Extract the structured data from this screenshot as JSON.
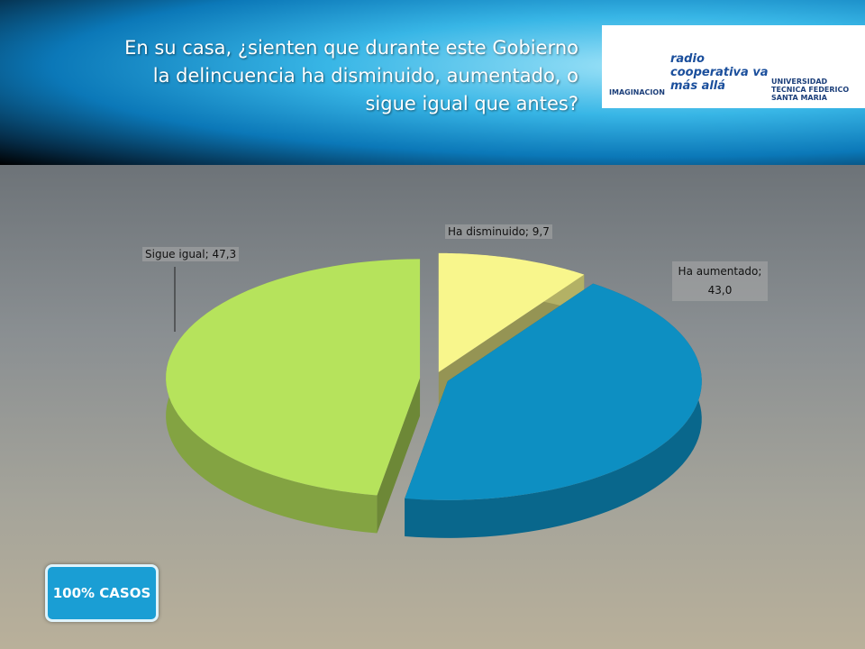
{
  "header": {
    "title": "En su casa, ¿sienten que durante este Gobierno la delincuencia ha disminuido, aumentado, o sigue igual que antes?",
    "logos": [
      "IMAGINACION",
      "radio cooperativa va más allá",
      "UNIVERSIDAD TECNICA FEDERICO SANTA MARIA"
    ]
  },
  "badge": "100% CASOS",
  "chart_data": {
    "type": "pie",
    "categories": [
      "Ha disminuido",
      "Ha aumentado",
      "Sigue igual"
    ],
    "values": [
      9.7,
      43.0,
      47.3
    ],
    "value_labels": [
      "Ha disminuido; 9,7",
      "Ha aumentado; 43,0",
      "Sigue igual; 47,3"
    ],
    "colors": [
      "#f8f68c",
      "#0d8fc2",
      "#b6e35c"
    ]
  }
}
